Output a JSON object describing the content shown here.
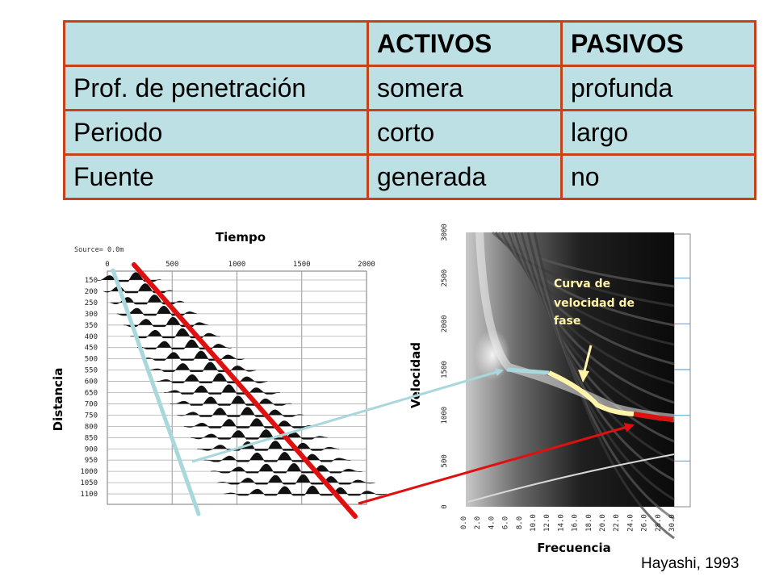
{
  "table": {
    "headers": [
      "",
      "ACTIVOS",
      "PASIVOS"
    ],
    "rows": [
      [
        "Prof. de penetración",
        "somera",
        "profunda"
      ],
      [
        "Periodo",
        "corto",
        "largo"
      ],
      [
        "Fuente",
        "generada",
        "no"
      ]
    ]
  },
  "seismogram": {
    "x_label": "Tiempo",
    "y_label": "Distancia",
    "source_label": "Source= 0.0m",
    "time_ticks": [
      "0",
      "500",
      "1000",
      "1500",
      "2000"
    ],
    "distance_ticks": [
      "150",
      "200",
      "250",
      "300",
      "350",
      "400",
      "450",
      "500",
      "550",
      "600",
      "650",
      "700",
      "750",
      "800",
      "850",
      "900",
      "950",
      "1000",
      "1050",
      "1100"
    ]
  },
  "dispersion": {
    "x_label": "Frecuencia",
    "y_label": "Velocidad",
    "velocity_ticks": [
      "0",
      "500",
      "1000",
      "1500",
      "2000",
      "2500",
      "3000"
    ],
    "frequency_ticks": [
      "0.0",
      "2.0",
      "4.0",
      "6.0",
      "8.0",
      "10.0",
      "12.0",
      "14.0",
      "16.0",
      "18.0",
      "20.0",
      "22.0",
      "24.0",
      "26.0",
      "28.0",
      "30.0"
    ],
    "annotation": [
      "Curva de",
      "velocidad de",
      "fase"
    ]
  },
  "citation": "Hayashi, 1993",
  "colors": {
    "table_fill": "#bde0e4",
    "table_border": "#c5421a",
    "red": "#e01010",
    "light_blue": "#a8d8dc",
    "annotation": "#fff4a8"
  }
}
